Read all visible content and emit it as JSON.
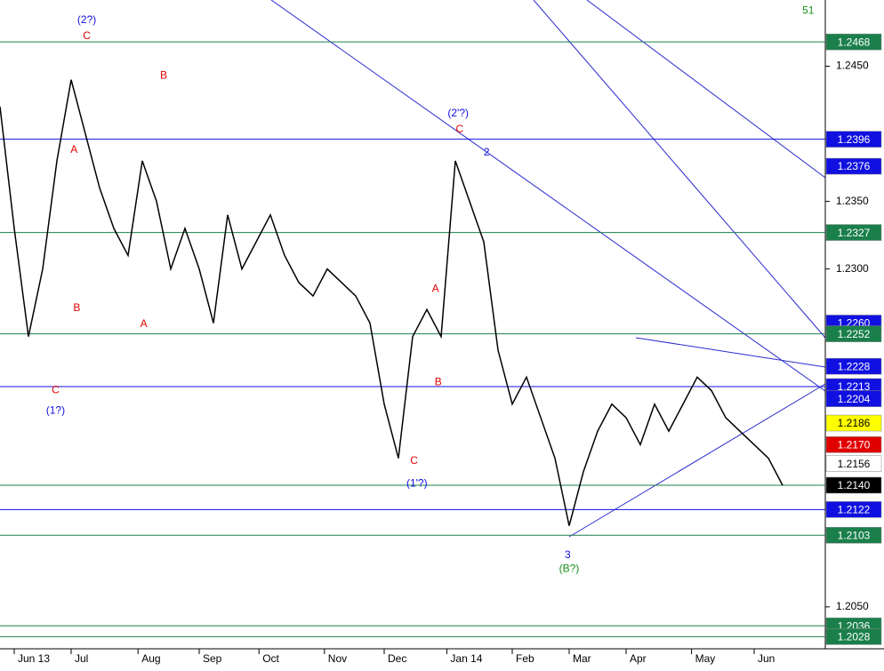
{
  "chart_data": {
    "type": "line",
    "x": [
      0,
      1,
      2,
      3,
      4,
      5,
      6,
      7,
      8,
      9,
      10,
      11,
      12,
      13,
      14,
      15,
      16,
      17,
      18,
      19,
      20,
      21,
      22,
      23,
      24,
      25,
      26,
      27,
      28,
      29,
      30,
      31,
      32,
      33,
      34,
      35,
      36,
      37,
      38,
      39,
      40,
      41,
      42,
      43,
      44,
      45,
      46,
      47,
      48,
      49,
      50,
      51,
      52,
      53,
      54,
      55
    ],
    "series": [
      {
        "color": "#000000",
        "values": [
          1.242,
          1.233,
          1.225,
          1.23,
          1.238,
          1.244,
          1.24,
          1.236,
          1.233,
          1.231,
          1.238,
          1.235,
          1.23,
          1.233,
          1.23,
          1.226,
          1.234,
          1.23,
          1.232,
          1.234,
          1.231,
          1.229,
          1.228,
          1.23,
          1.229,
          1.228,
          1.226,
          1.22,
          1.216,
          1.225,
          1.227,
          1.225,
          1.238,
          1.235,
          1.232,
          1.224,
          1.22,
          1.222,
          1.219,
          1.216,
          1.211,
          1.215,
          1.218,
          1.22,
          1.219,
          1.217,
          1.22,
          1.218,
          1.22,
          1.222,
          1.221,
          1.219,
          1.218,
          1.217,
          1.216,
          1.214
        ]
      }
    ],
    "xlim": [
      0,
      58
    ],
    "xticks": [
      {
        "value": 1,
        "label": "Jun 13"
      },
      {
        "value": 5,
        "label": "Jul"
      },
      {
        "value": 9.7,
        "label": "Aug"
      },
      {
        "value": 14,
        "label": "Sep"
      },
      {
        "value": 18.2,
        "label": "Oct"
      },
      {
        "value": 22.8,
        "label": "Nov"
      },
      {
        "value": 27,
        "label": "Dec"
      },
      {
        "value": 31.4,
        "label": "Jan 14"
      },
      {
        "value": 36,
        "label": "Feb"
      },
      {
        "value": 40,
        "label": "Mar"
      },
      {
        "value": 44,
        "label": "Apr"
      },
      {
        "value": 48.6,
        "label": "May"
      },
      {
        "value": 53,
        "label": "Jun"
      }
    ],
    "ylim": [
      1.2019,
      1.2499
    ],
    "yticks": [
      {
        "value": 1.245,
        "label": "1.2450"
      },
      {
        "value": 1.235,
        "label": "1.2350"
      },
      {
        "value": 1.23,
        "label": "1.2300"
      },
      {
        "value": 1.205,
        "label": "1.2050"
      }
    ],
    "price_tags": [
      {
        "value": 1.2468,
        "label": "1.2468",
        "color": "#1a7f4b",
        "line": true
      },
      {
        "value": 1.2396,
        "label": "1.2396",
        "color": "#1010e0",
        "line": true
      },
      {
        "value": 1.2376,
        "label": "1.2376",
        "color": "#1010e0",
        "line": false
      },
      {
        "value": 1.2327,
        "label": "1.2327",
        "color": "#1a7f4b",
        "line": true
      },
      {
        "value": 1.226,
        "label": "1.2260",
        "color": "#1010e0",
        "line": false
      },
      {
        "value": 1.2252,
        "label": "1.2252",
        "color": "#1a7f4b",
        "line": true
      },
      {
        "value": 1.2228,
        "label": "1.2228",
        "color": "#1010e0",
        "line": false
      },
      {
        "value": 1.2213,
        "label": "1.2213",
        "color": "#1010e0",
        "line": true
      },
      {
        "value": 1.2204,
        "label": "1.2204",
        "color": "#1010e0",
        "line": false
      },
      {
        "value": 1.2186,
        "label": "1.2186",
        "color": "#ffff00",
        "line": false
      },
      {
        "value": 1.217,
        "label": "1.2170",
        "color": "#e00000",
        "line": false
      },
      {
        "value": 1.2156,
        "label": "1.2156",
        "color": "#ffffff",
        "line": false
      },
      {
        "value": 1.214,
        "label": "1.2140",
        "color": "#000000",
        "line": true
      },
      {
        "value": 1.2122,
        "label": "1.2122",
        "color": "#1010e0",
        "line": true
      },
      {
        "value": 1.2103,
        "label": "1.2103",
        "color": "#1a7f4b",
        "line": true
      },
      {
        "value": 1.2036,
        "label": "1.2036",
        "color": "#1a7f4b",
        "line": true
      },
      {
        "value": 1.2028,
        "label": "1.2028",
        "color": "#1a7f4b",
        "line": true
      }
    ],
    "annotations": [
      {
        "text": "51",
        "x": 56.8,
        "y": 1.2491,
        "color": "#1a8f1a"
      },
      {
        "text": "(2?)",
        "x": 6.1,
        "y": 1.2484,
        "color": "#1010e0"
      },
      {
        "text": "C",
        "x": 6.1,
        "y": 1.2472,
        "color": "#e00000"
      },
      {
        "text": "B",
        "x": 11.5,
        "y": 1.2443,
        "color": "#e00000"
      },
      {
        "text": "A",
        "x": 5.2,
        "y": 1.2388,
        "color": "#e00000"
      },
      {
        "text": "B",
        "x": 5.4,
        "y": 1.2271,
        "color": "#e00000"
      },
      {
        "text": "A",
        "x": 10.1,
        "y": 1.2259,
        "color": "#e00000"
      },
      {
        "text": "C",
        "x": 3.9,
        "y": 1.221,
        "color": "#e00000"
      },
      {
        "text": "(1?)",
        "x": 3.9,
        "y": 1.2195,
        "color": "#1010e0"
      },
      {
        "text": "(2'?)",
        "x": 32.2,
        "y": 1.2415,
        "color": "#1010e0"
      },
      {
        "text": "C",
        "x": 32.3,
        "y": 1.2403,
        "color": "#e00000"
      },
      {
        "text": "2",
        "x": 34.2,
        "y": 1.2386,
        "color": "#1010e0"
      },
      {
        "text": "A",
        "x": 30.6,
        "y": 1.2285,
        "color": "#e00000"
      },
      {
        "text": "B",
        "x": 30.8,
        "y": 1.2216,
        "color": "#e00000"
      },
      {
        "text": "C",
        "x": 29.1,
        "y": 1.2158,
        "color": "#e00000"
      },
      {
        "text": "(1'?)",
        "x": 29.3,
        "y": 1.2141,
        "color": "#1010e0"
      },
      {
        "text": "3",
        "x": 39.9,
        "y": 1.2088,
        "color": "#1010e0"
      },
      {
        "text": "(B?)",
        "x": 40,
        "y": 1.2078,
        "color": "#1a8f1a"
      }
    ]
  }
}
